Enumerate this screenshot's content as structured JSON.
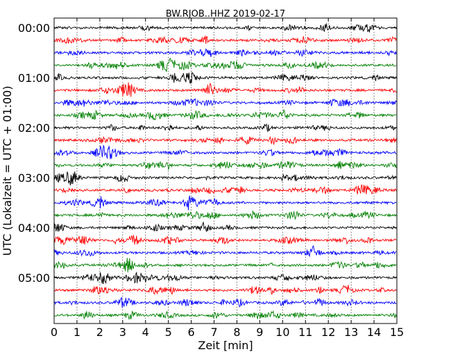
{
  "chart_data": {
    "type": "line",
    "title": "BW.RJOB..HHZ 2019-02-17",
    "xlabel": "Zeit  [min]",
    "ylabel": "UTC (Lokalzeit = UTC + 01:00)",
    "xlim": [
      0,
      15
    ],
    "x_ticks": [
      "0",
      "1",
      "2",
      "3",
      "4",
      "5",
      "6",
      "7",
      "8",
      "9",
      "10",
      "11",
      "12",
      "13",
      "14",
      "15"
    ],
    "y_ticks": [
      "00:00",
      "01:00",
      "02:00",
      "03:00",
      "04:00",
      "05:00"
    ],
    "y_tick_rows": [
      0,
      4,
      8,
      12,
      16,
      20
    ],
    "rows_per_hour": 4,
    "row_count": 24,
    "grid": {
      "vertical": true,
      "style": "dotted"
    },
    "trace_colors": [
      "#000000",
      "#ff0000",
      "#0000ff",
      "#008000"
    ]
  }
}
